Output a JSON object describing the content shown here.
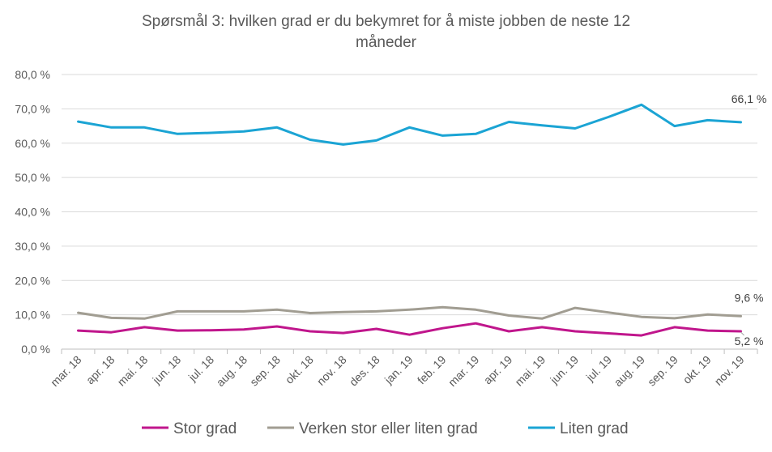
{
  "chart_data": {
    "type": "line",
    "title_line1": "Spørsmål 3: hvilken grad er du bekymret for å miste jobben de neste 12",
    "title_line2": "måneder",
    "xlabel": "",
    "ylabel": "",
    "ylim": [
      0,
      80
    ],
    "yticks": [
      "0,0 %",
      "10,0 %",
      "20,0 %",
      "30,0 %",
      "40,0 %",
      "50,0 %",
      "60,0 %",
      "70,0 %",
      "80,0 %"
    ],
    "grid": true,
    "legend_position": "bottom",
    "categories": [
      "mar. 18",
      "apr. 18",
      "mai. 18",
      "jun. 18",
      "jul. 18",
      "aug. 18",
      "sep. 18",
      "okt. 18",
      "nov. 18",
      "des. 18",
      "jan. 19",
      "feb. 19",
      "mar. 19",
      "apr. 19",
      "mai. 19",
      "jun. 19",
      "jul. 19",
      "aug. 19",
      "sep. 19",
      "okt. 19",
      "nov. 19"
    ],
    "series": [
      {
        "name": "Stor grad",
        "color": "#C0168C",
        "values": [
          5.4,
          4.9,
          6.4,
          5.4,
          5.5,
          5.7,
          6.6,
          5.2,
          4.7,
          5.9,
          4.2,
          6.1,
          7.5,
          5.2,
          6.4,
          5.2,
          4.6,
          4.0,
          6.4,
          5.4,
          5.2
        ],
        "end_label": "5,2 %"
      },
      {
        "name": "Verken stor eller liten grad",
        "color": "#A19D92",
        "values": [
          10.6,
          9.1,
          8.9,
          11.0,
          11.0,
          11.0,
          11.5,
          10.5,
          10.8,
          11.0,
          11.5,
          12.2,
          11.5,
          9.8,
          8.9,
          12.0,
          10.7,
          9.4,
          9.0,
          10.1,
          9.6
        ],
        "end_label": "9,6 %"
      },
      {
        "name": "Liten grad",
        "color": "#1BA4D4",
        "values": [
          66.3,
          64.6,
          64.6,
          62.7,
          63.0,
          63.4,
          64.6,
          61.0,
          59.6,
          60.8,
          64.6,
          62.2,
          62.7,
          66.2,
          65.2,
          64.3,
          67.6,
          71.2,
          65.0,
          66.7,
          66.1
        ],
        "end_label": "66,1 %"
      }
    ]
  }
}
